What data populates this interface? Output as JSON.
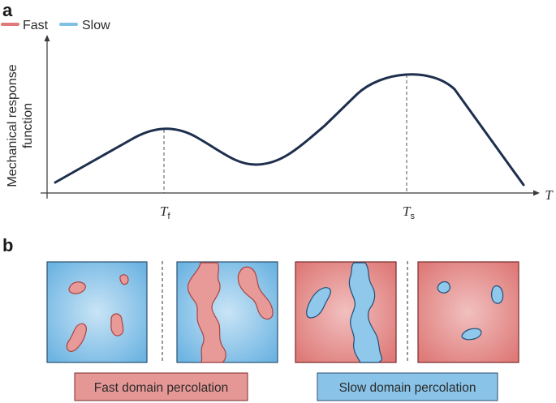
{
  "panel_a": {
    "label": "a",
    "legend": [
      {
        "name": "Fast",
        "color": "#e07a7a"
      },
      {
        "name": "Slow",
        "color": "#7fc0e6"
      }
    ],
    "ylabel_line1": "Mechanical response",
    "ylabel_line2": "function",
    "xlabel": "T",
    "peak_fast": {
      "main": "T",
      "sub": "f"
    },
    "peak_slow": {
      "main": "T",
      "sub": "s"
    },
    "curve_color": "#1d2f4d"
  },
  "panel_b": {
    "label": "b",
    "caption_fast": "Fast domain percolation",
    "caption_slow": "Slow domain percolation",
    "fast_fill": "#e79a98",
    "fast_border": "#c9605e",
    "slow_fill": "#8fc8ea",
    "slow_border": "#4a8fc0"
  }
}
